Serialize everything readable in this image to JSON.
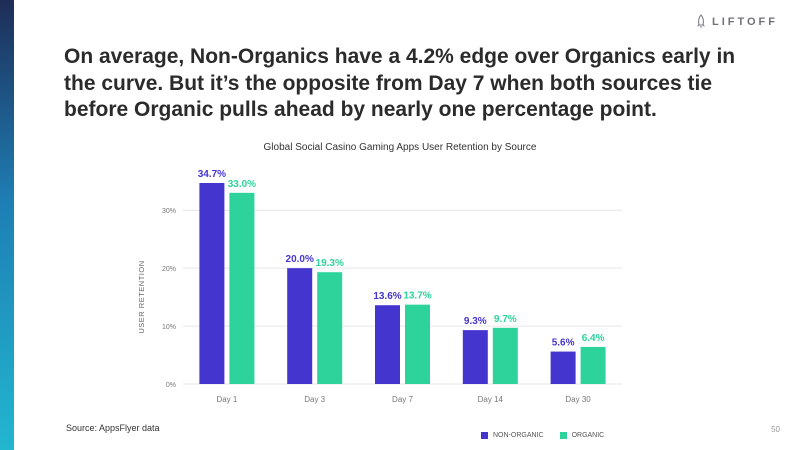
{
  "brand": {
    "logo_text": "LIFTOFF",
    "logo_icon": "rocket-icon"
  },
  "headline": "On average, Non-Organics have a 4.2% edge over Organics early in the curve. But it’s the opposite from Day 7 when both sources tie before Organic pulls ahead by nearly one percentage point.",
  "source_note": "Source: AppsFlyer data",
  "page_number": "50",
  "colors": {
    "non_organic": "#4535cf",
    "organic": "#2dd39b",
    "accent_bar": "#1e7fb5"
  },
  "chart_data": {
    "type": "bar",
    "title": "Global Social Casino Gaming Apps User Retention by Source",
    "xlabel": "",
    "ylabel": "USER RETENTION",
    "categories": [
      "Day 1",
      "Day 3",
      "Day 7",
      "Day 14",
      "Day 30"
    ],
    "series": [
      {
        "name": "NON-ORGANIC",
        "values": [
          34.7,
          20.0,
          13.6,
          9.3,
          5.6
        ],
        "labels": [
          "34.7%",
          "20.0%",
          "13.6%",
          "9.3%",
          "5.6%"
        ]
      },
      {
        "name": "ORGANIC",
        "values": [
          33.0,
          19.3,
          13.7,
          9.7,
          6.4
        ],
        "labels": [
          "33.0%",
          "19.3%",
          "13.7%",
          "9.7%",
          "6.4%"
        ]
      }
    ],
    "ylim": [
      0,
      35
    ],
    "yticks": [
      0,
      10,
      20,
      30
    ],
    "ytick_labels": [
      "0%",
      "10%",
      "20%",
      "30%"
    ],
    "grid": true,
    "legend": "bottom-right"
  }
}
